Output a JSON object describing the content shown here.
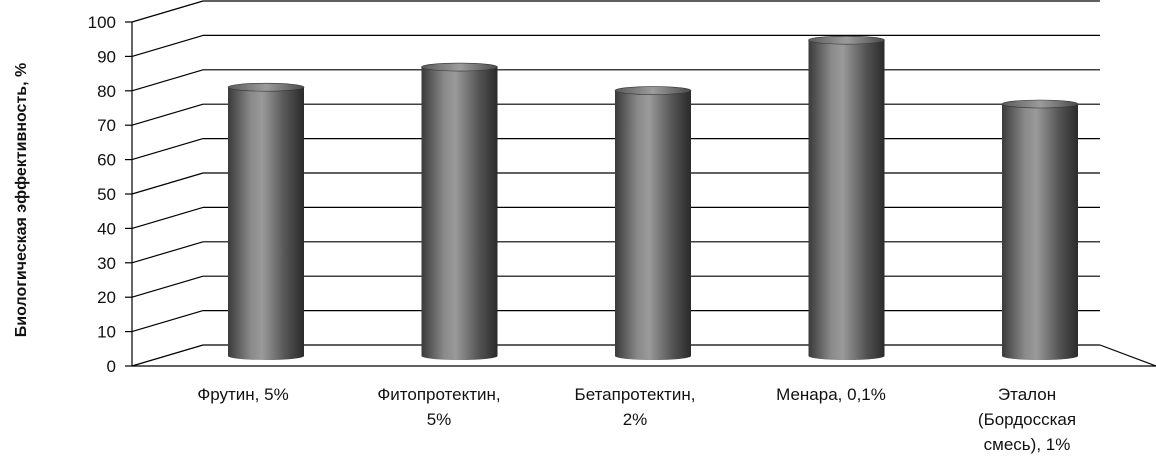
{
  "chart_data": {
    "type": "bar",
    "ylabel": "Биологическая эффективность, %",
    "ylim": [
      0,
      100
    ],
    "yticks": [
      "0",
      "10",
      "20",
      "30",
      "40",
      "50",
      "60",
      "70",
      "80",
      "90",
      "100"
    ],
    "categories": [
      [
        "Фрутин, 5%"
      ],
      [
        "Фитопротектин,",
        "5%"
      ],
      [
        "Бетапротектин,",
        "2%"
      ],
      [
        "Менара, 0,1%"
      ],
      [
        "Эталон",
        "(Бордосская",
        "смесь), 1%"
      ]
    ],
    "values": [
      80,
      86,
      79,
      94,
      75
    ],
    "grid": true,
    "colors": {
      "bar": "#555555",
      "grid": "#000000"
    }
  }
}
